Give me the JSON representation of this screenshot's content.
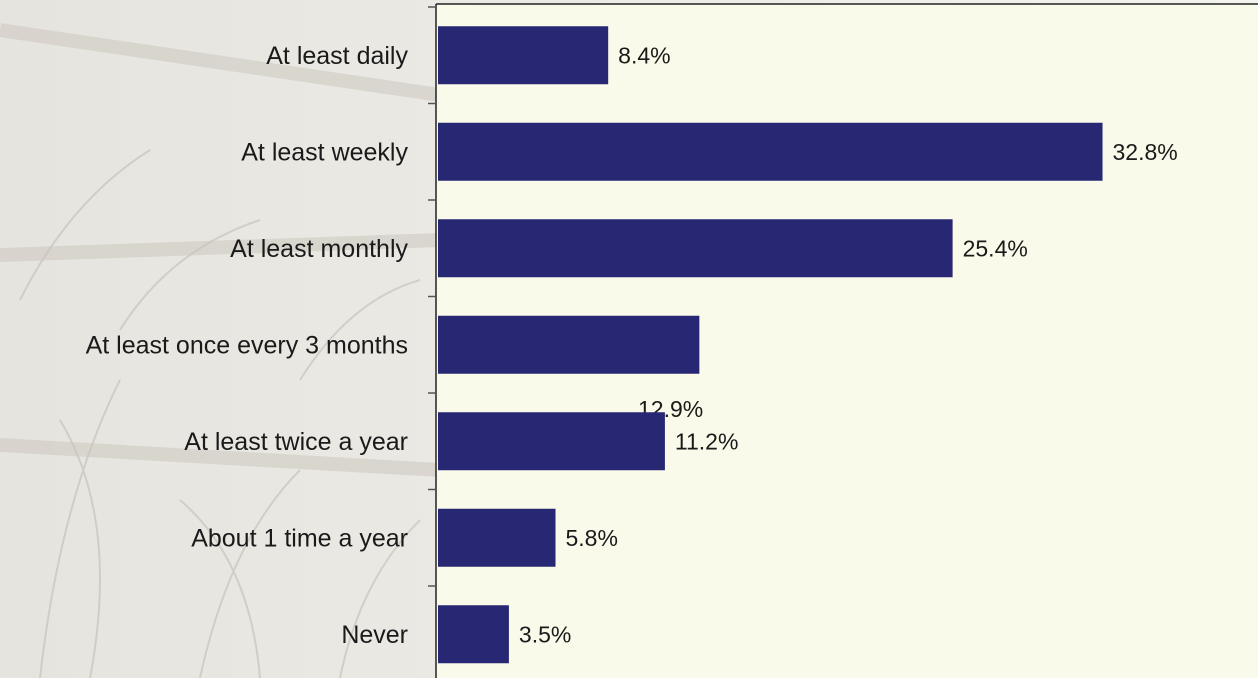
{
  "chart_data": {
    "type": "bar",
    "orientation": "horizontal",
    "categories": [
      "At least daily",
      "At least weekly",
      "At least monthly",
      "At least once every 3 months",
      "At least twice a year",
      "About 1 time a year",
      "Never"
    ],
    "values": [
      8.4,
      32.8,
      25.4,
      12.9,
      11.2,
      5.8,
      3.5
    ],
    "value_labels": [
      "8.4%",
      "32.8%",
      "25.4%",
      "12.9%",
      "11.2%",
      "5.8%",
      "3.5%"
    ],
    "color": "#272773"
  }
}
